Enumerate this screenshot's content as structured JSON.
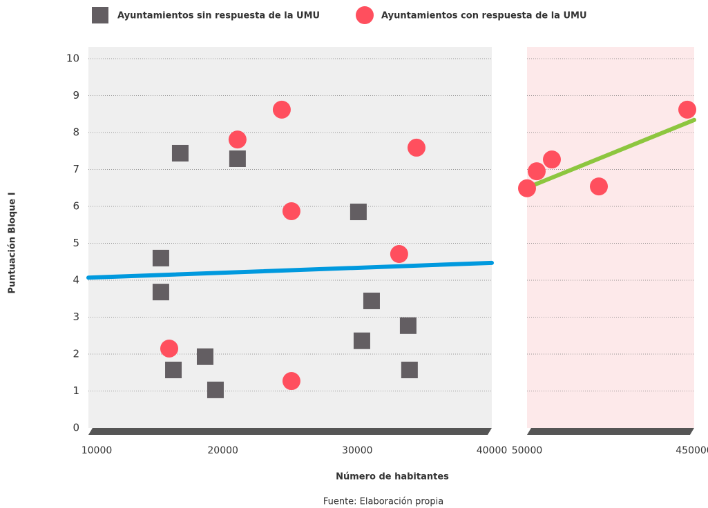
{
  "chart_data": [
    {
      "type": "scatter",
      "xlabel": "Número de habitantes",
      "ylabel": "Puntuación Bloque I",
      "xlim": [
        10000,
        40000
      ],
      "xticks": [
        10000,
        20000,
        30000,
        40000
      ],
      "ylim": [
        0,
        10
      ],
      "yticks": [
        0,
        1,
        2,
        3,
        4,
        5,
        6,
        7,
        8,
        9,
        10
      ],
      "grid": true,
      "background": "#efefef",
      "series": [
        {
          "name": "Ayuntamientos sin respuesta de la UMU",
          "color": "#635e62",
          "marker": "square",
          "x": [
            15390,
            15390,
            16830,
            16320,
            18680,
            19450,
            21090,
            30080,
            31060,
            30340,
            33780,
            33880
          ],
          "values": [
            4.6,
            3.68,
            7.44,
            1.57,
            1.93,
            1.03,
            7.29,
            5.85,
            3.44,
            2.36,
            2.77,
            1.57
          ]
        },
        {
          "name": "Ayuntamientos con respuesta de la UMU",
          "color": "#ff4f5e",
          "marker": "circle",
          "x": [
            16010,
            21090,
            24380,
            25100,
            25100,
            34400,
            33110
          ],
          "values": [
            2.15,
            7.81,
            8.62,
            5.87,
            1.27,
            7.59,
            4.71
          ]
        }
      ],
      "trendline": {
        "color": "#0099de",
        "x": [
          10000,
          40000
        ],
        "values": [
          4.07,
          4.47
        ]
      }
    },
    {
      "type": "scatter",
      "xlim": [
        50000,
        450000
      ],
      "xticks": [
        50000,
        450000
      ],
      "ylim": [
        0,
        10
      ],
      "yticks": [
        0,
        1,
        2,
        3,
        4,
        5,
        6,
        7,
        8,
        9,
        10
      ],
      "grid": true,
      "background": "#fde9ea",
      "series": [
        {
          "color": "#ff4f5e",
          "marker": "circle",
          "x": [
            50000,
            73140,
            109500,
            221900,
            433500
          ],
          "values": [
            6.49,
            6.95,
            7.27,
            6.54,
            8.62
          ]
        }
      ],
      "trendline": {
        "color": "#8dc63f",
        "x": [
          60000,
          450000
        ],
        "values": [
          6.55,
          8.34
        ]
      }
    }
  ],
  "note": "Fuente: Elaboración propia"
}
